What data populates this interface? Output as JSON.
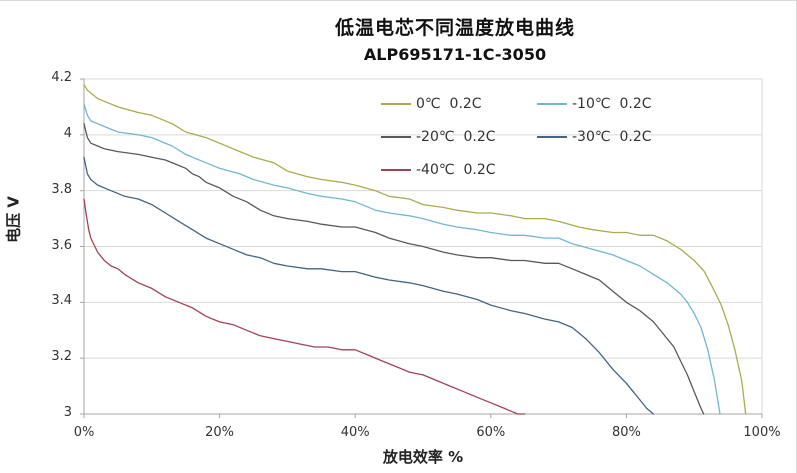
{
  "chart_data": {
    "type": "line",
    "title": "低温电芯不同温度放电曲线",
    "subtitle": "ALP695171-1C-3050",
    "xlabel": "放电效率 %",
    "ylabel": "电压 V",
    "xlim": [
      0,
      100
    ],
    "ylim": [
      3.0,
      4.2
    ],
    "grid": "horizontal",
    "legend_position": "top-inside-two-columns",
    "x_tick_labels": [
      "0%",
      "20%",
      "40%",
      "60%",
      "80%",
      "100%"
    ],
    "x_tick_values": [
      0,
      20,
      40,
      60,
      80,
      100
    ],
    "y_tick_labels": [
      "3",
      "3.2",
      "3.4",
      "3.6",
      "3.8",
      "4",
      "4.2"
    ],
    "y_tick_values": [
      3.0,
      3.2,
      3.4,
      3.6,
      3.8,
      4.0,
      4.2
    ],
    "series": [
      {
        "name": "0℃  0.2C",
        "color": "#A9AC4F",
        "points": [
          [
            0,
            4.18
          ],
          [
            0.5,
            4.16
          ],
          [
            1,
            4.15
          ],
          [
            2,
            4.13
          ],
          [
            3,
            4.12
          ],
          [
            5,
            4.1
          ],
          [
            8,
            4.08
          ],
          [
            10,
            4.07
          ],
          [
            13,
            4.04
          ],
          [
            15,
            4.01
          ],
          [
            18,
            3.99
          ],
          [
            20,
            3.97
          ],
          [
            23,
            3.94
          ],
          [
            25,
            3.92
          ],
          [
            28,
            3.9
          ],
          [
            30,
            3.87
          ],
          [
            33,
            3.85
          ],
          [
            35,
            3.84
          ],
          [
            38,
            3.83
          ],
          [
            40,
            3.82
          ],
          [
            43,
            3.8
          ],
          [
            45,
            3.78
          ],
          [
            48,
            3.77
          ],
          [
            50,
            3.75
          ],
          [
            53,
            3.74
          ],
          [
            55,
            3.73
          ],
          [
            58,
            3.72
          ],
          [
            60,
            3.72
          ],
          [
            63,
            3.71
          ],
          [
            65,
            3.7
          ],
          [
            68,
            3.7
          ],
          [
            70,
            3.69
          ],
          [
            73,
            3.67
          ],
          [
            75,
            3.66
          ],
          [
            78,
            3.65
          ],
          [
            80,
            3.65
          ],
          [
            82,
            3.64
          ],
          [
            84,
            3.64
          ],
          [
            86,
            3.62
          ],
          [
            88,
            3.59
          ],
          [
            90,
            3.55
          ],
          [
            91.5,
            3.51
          ],
          [
            93,
            3.44
          ],
          [
            94,
            3.39
          ],
          [
            95,
            3.32
          ],
          [
            96,
            3.23
          ],
          [
            97,
            3.12
          ],
          [
            97.6,
            3.0
          ]
        ]
      },
      {
        "name": "-10℃  0.2C",
        "color": "#74B6CF",
        "points": [
          [
            0,
            4.11
          ],
          [
            0.5,
            4.07
          ],
          [
            1,
            4.05
          ],
          [
            2,
            4.04
          ],
          [
            3,
            4.03
          ],
          [
            5,
            4.01
          ],
          [
            8,
            4.0
          ],
          [
            10,
            3.99
          ],
          [
            13,
            3.96
          ],
          [
            15,
            3.93
          ],
          [
            18,
            3.9
          ],
          [
            20,
            3.88
          ],
          [
            23,
            3.86
          ],
          [
            25,
            3.84
          ],
          [
            28,
            3.82
          ],
          [
            30,
            3.81
          ],
          [
            33,
            3.79
          ],
          [
            35,
            3.78
          ],
          [
            38,
            3.77
          ],
          [
            40,
            3.76
          ],
          [
            43,
            3.73
          ],
          [
            45,
            3.72
          ],
          [
            48,
            3.71
          ],
          [
            50,
            3.7
          ],
          [
            53,
            3.68
          ],
          [
            55,
            3.67
          ],
          [
            58,
            3.66
          ],
          [
            60,
            3.65
          ],
          [
            63,
            3.64
          ],
          [
            65,
            3.64
          ],
          [
            68,
            3.63
          ],
          [
            70,
            3.63
          ],
          [
            72,
            3.61
          ],
          [
            75,
            3.59
          ],
          [
            78,
            3.57
          ],
          [
            80,
            3.55
          ],
          [
            82,
            3.53
          ],
          [
            84,
            3.5
          ],
          [
            86,
            3.47
          ],
          [
            88,
            3.43
          ],
          [
            89,
            3.4
          ],
          [
            90,
            3.36
          ],
          [
            91,
            3.31
          ],
          [
            92,
            3.23
          ],
          [
            93,
            3.12
          ],
          [
            93.8,
            3.0
          ]
        ]
      },
      {
        "name": "-20℃  0.2C",
        "color": "#595959",
        "points": [
          [
            0,
            4.04
          ],
          [
            0.5,
            3.99
          ],
          [
            1,
            3.97
          ],
          [
            2,
            3.96
          ],
          [
            3,
            3.95
          ],
          [
            5,
            3.94
          ],
          [
            8,
            3.93
          ],
          [
            10,
            3.92
          ],
          [
            12,
            3.91
          ],
          [
            14,
            3.89
          ],
          [
            15,
            3.88
          ],
          [
            16,
            3.86
          ],
          [
            17,
            3.85
          ],
          [
            18,
            3.83
          ],
          [
            20,
            3.81
          ],
          [
            22,
            3.78
          ],
          [
            24,
            3.76
          ],
          [
            26,
            3.73
          ],
          [
            28,
            3.71
          ],
          [
            30,
            3.7
          ],
          [
            33,
            3.69
          ],
          [
            35,
            3.68
          ],
          [
            38,
            3.67
          ],
          [
            40,
            3.67
          ],
          [
            43,
            3.65
          ],
          [
            45,
            3.63
          ],
          [
            48,
            3.61
          ],
          [
            50,
            3.6
          ],
          [
            53,
            3.58
          ],
          [
            55,
            3.57
          ],
          [
            58,
            3.56
          ],
          [
            60,
            3.56
          ],
          [
            63,
            3.55
          ],
          [
            65,
            3.55
          ],
          [
            68,
            3.54
          ],
          [
            70,
            3.54
          ],
          [
            72,
            3.52
          ],
          [
            74,
            3.5
          ],
          [
            76,
            3.48
          ],
          [
            78,
            3.44
          ],
          [
            80,
            3.4
          ],
          [
            82,
            3.37
          ],
          [
            84,
            3.33
          ],
          [
            86,
            3.27
          ],
          [
            87,
            3.24
          ],
          [
            88,
            3.19
          ],
          [
            89,
            3.14
          ],
          [
            90,
            3.08
          ],
          [
            91,
            3.02
          ],
          [
            91.4,
            3.0
          ]
        ]
      },
      {
        "name": "-30℃  0.2C",
        "color": "#46647F",
        "points": [
          [
            0,
            3.92
          ],
          [
            0.5,
            3.86
          ],
          [
            1,
            3.84
          ],
          [
            2,
            3.82
          ],
          [
            4,
            3.8
          ],
          [
            6,
            3.78
          ],
          [
            8,
            3.77
          ],
          [
            10,
            3.75
          ],
          [
            12,
            3.72
          ],
          [
            14,
            3.69
          ],
          [
            16,
            3.66
          ],
          [
            18,
            3.63
          ],
          [
            20,
            3.61
          ],
          [
            22,
            3.59
          ],
          [
            24,
            3.57
          ],
          [
            26,
            3.56
          ],
          [
            28,
            3.54
          ],
          [
            30,
            3.53
          ],
          [
            33,
            3.52
          ],
          [
            35,
            3.52
          ],
          [
            38,
            3.51
          ],
          [
            40,
            3.51
          ],
          [
            43,
            3.49
          ],
          [
            45,
            3.48
          ],
          [
            48,
            3.47
          ],
          [
            50,
            3.46
          ],
          [
            53,
            3.44
          ],
          [
            55,
            3.43
          ],
          [
            58,
            3.41
          ],
          [
            60,
            3.39
          ],
          [
            63,
            3.37
          ],
          [
            65,
            3.36
          ],
          [
            68,
            3.34
          ],
          [
            70,
            3.33
          ],
          [
            72,
            3.31
          ],
          [
            74,
            3.27
          ],
          [
            76,
            3.22
          ],
          [
            78,
            3.16
          ],
          [
            80,
            3.11
          ],
          [
            81,
            3.08
          ],
          [
            82,
            3.05
          ],
          [
            83,
            3.02
          ],
          [
            84,
            3.0
          ]
        ]
      },
      {
        "name": "-40℃  0.2C",
        "color": "#A04355",
        "points": [
          [
            0,
            3.77
          ],
          [
            0.3,
            3.72
          ],
          [
            0.7,
            3.66
          ],
          [
            1,
            3.63
          ],
          [
            2,
            3.58
          ],
          [
            3,
            3.55
          ],
          [
            4,
            3.53
          ],
          [
            5,
            3.52
          ],
          [
            6,
            3.5
          ],
          [
            8,
            3.47
          ],
          [
            10,
            3.45
          ],
          [
            12,
            3.42
          ],
          [
            14,
            3.4
          ],
          [
            16,
            3.38
          ],
          [
            18,
            3.35
          ],
          [
            20,
            3.33
          ],
          [
            22,
            3.32
          ],
          [
            24,
            3.3
          ],
          [
            26,
            3.28
          ],
          [
            28,
            3.27
          ],
          [
            30,
            3.26
          ],
          [
            32,
            3.25
          ],
          [
            34,
            3.24
          ],
          [
            36,
            3.24
          ],
          [
            38,
            3.23
          ],
          [
            40,
            3.23
          ],
          [
            42,
            3.21
          ],
          [
            44,
            3.19
          ],
          [
            46,
            3.17
          ],
          [
            48,
            3.15
          ],
          [
            50,
            3.14
          ],
          [
            52,
            3.12
          ],
          [
            54,
            3.1
          ],
          [
            56,
            3.08
          ],
          [
            58,
            3.06
          ],
          [
            60,
            3.04
          ],
          [
            62,
            3.02
          ],
          [
            63,
            3.01
          ],
          [
            64,
            3.0
          ],
          [
            65,
            3.0
          ]
        ]
      }
    ],
    "style_colors": {
      "gridline": "#d9d9d9",
      "plot_border": "#d9d9d9",
      "axis_line": "#a6a6a6",
      "tick_text": "#333333",
      "title_text": "#111111"
    }
  }
}
